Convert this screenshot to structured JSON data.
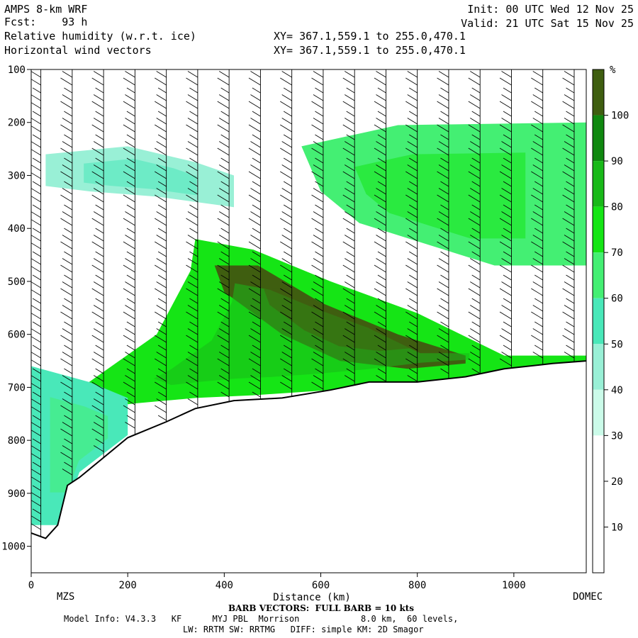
{
  "header": {
    "model": "AMPS 8-km WRF",
    "fcst_label": "Fcst:",
    "fcst_value": "93 h",
    "field1": "Relative humidity (w.r.t. ice)",
    "field2": "Horizontal wind vectors",
    "xy1": "XY= 367.1,559.1 to 255.0,470.1",
    "xy2": "XY= 367.1,559.1 to 255.0,470.1",
    "init": "Init: 00 UTC Wed 12 Nov 25",
    "valid": "Valid: 21 UTC Sat 15 Nov 25"
  },
  "footer": {
    "left_station": "MZS",
    "right_station": "DOMEC",
    "barb_note": "BARB VECTORS:  FULL BARB = 10 kts",
    "model_info": "Model Info: V4.3.3   KF      MYJ PBL  Morrison            8.0 km,  60 levels,",
    "model_info2": "LW: RRTM SW: RRTMG   DIFF: simple KM: 2D Smagor"
  },
  "colors": {
    "c10": "#ffffff",
    "c20": "#ffffff",
    "c30": "#cbfbe9",
    "c40": "#99f0d6",
    "c50": "#49e8b9",
    "c60": "#44ef73",
    "c70": "#15e515",
    "c80": "#19b919",
    "c90": "#108810",
    "c100": "#3f5e10"
  },
  "chart_data": {
    "type": "heatmap",
    "title": "Relative humidity (w.r.t. ice)",
    "xlabel": "Distance (km)",
    "ylabel": "",
    "xlim": [
      0,
      1150
    ],
    "ylim": [
      1050,
      100
    ],
    "x_ticks": [
      0,
      200,
      400,
      600,
      800,
      1000
    ],
    "y_ticks": [
      100,
      200,
      300,
      400,
      500,
      600,
      700,
      800,
      900,
      1000
    ],
    "colorbar": {
      "unit": "%",
      "levels": [
        10,
        20,
        30,
        40,
        50,
        60,
        70,
        80,
        90,
        100
      ]
    },
    "terrain_pressure": [
      [
        0,
        975
      ],
      [
        30,
        985
      ],
      [
        55,
        960
      ],
      [
        75,
        885
      ],
      [
        100,
        870
      ],
      [
        140,
        840
      ],
      [
        200,
        795
      ],
      [
        280,
        765
      ],
      [
        340,
        740
      ],
      [
        420,
        725
      ],
      [
        520,
        720
      ],
      [
        620,
        705
      ],
      [
        700,
        690
      ],
      [
        800,
        690
      ],
      [
        900,
        680
      ],
      [
        980,
        665
      ],
      [
        1080,
        655
      ],
      [
        1150,
        650
      ]
    ],
    "rh_bands": [
      {
        "name": "upper-left moist layer",
        "rh": 40,
        "points": [
          [
            30,
            260
          ],
          [
            200,
            245
          ],
          [
            340,
            275
          ],
          [
            420,
            300
          ],
          [
            420,
            360
          ],
          [
            260,
            340
          ],
          [
            120,
            330
          ],
          [
            30,
            320
          ]
        ]
      },
      {
        "name": "upper-right moist layer",
        "rh": 60,
        "points": [
          [
            560,
            245
          ],
          [
            760,
            205
          ],
          [
            1150,
            200
          ],
          [
            1150,
            470
          ],
          [
            960,
            470
          ],
          [
            820,
            430
          ],
          [
            680,
            390
          ],
          [
            600,
            330
          ]
        ]
      },
      {
        "name": "mid moist tongue",
        "rh": 70,
        "points": [
          [
            340,
            420
          ],
          [
            460,
            440
          ],
          [
            620,
            500
          ],
          [
            800,
            560
          ],
          [
            980,
            640
          ],
          [
            1150,
            640
          ],
          [
            1150,
            660
          ],
          [
            980,
            670
          ],
          [
            800,
            690
          ],
          [
            620,
            705
          ],
          [
            460,
            715
          ],
          [
            340,
            720
          ],
          [
            220,
            730
          ],
          [
            120,
            740
          ],
          [
            60,
            720
          ],
          [
            120,
            690
          ],
          [
            260,
            600
          ],
          [
            330,
            480
          ]
        ]
      },
      {
        "name": "saturated core",
        "rh": 100,
        "points": [
          [
            380,
            470
          ],
          [
            470,
            470
          ],
          [
            600,
            540
          ],
          [
            760,
            600
          ],
          [
            900,
            640
          ],
          [
            900,
            655
          ],
          [
            780,
            665
          ],
          [
            640,
            650
          ],
          [
            520,
            600
          ],
          [
            400,
            520
          ]
        ]
      },
      {
        "name": "low-level left",
        "rh": 50,
        "points": [
          [
            0,
            660
          ],
          [
            120,
            690
          ],
          [
            200,
            720
          ],
          [
            200,
            790
          ],
          [
            100,
            860
          ],
          [
            60,
            960
          ],
          [
            0,
            960
          ]
        ]
      }
    ],
    "wind_barb_columns_km": [
      20,
      85,
      150,
      215,
      280,
      345,
      410,
      475,
      540,
      605,
      670,
      735,
      800,
      865,
      930,
      995,
      1060,
      1125
    ]
  }
}
